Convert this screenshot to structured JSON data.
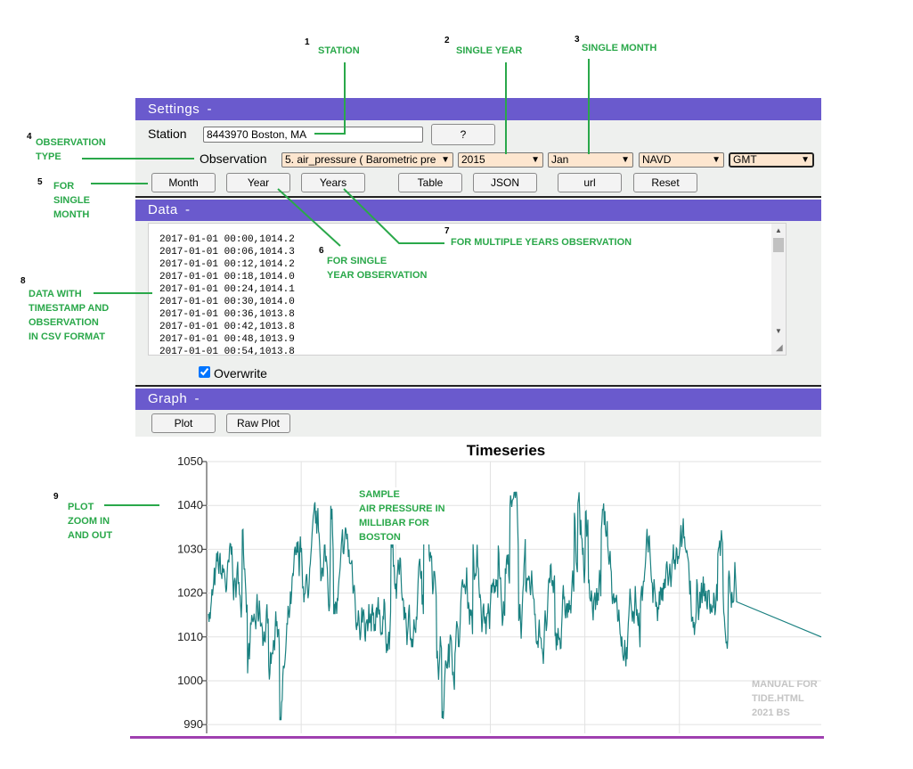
{
  "settings": {
    "header": "Settings",
    "toggle": "-",
    "station_label": "Station",
    "station_value": "8443970 Boston, MA",
    "help_button": "?",
    "observation_label": "Observation",
    "observation_select": "5. air_pressure ( Barometric pre",
    "year_select": "2015",
    "month_select": "Jan",
    "datum_select": "NAVD",
    "tz_select": "GMT",
    "buttons": [
      "Month",
      "Year",
      "Years",
      "Table",
      "JSON",
      "url",
      "Reset"
    ]
  },
  "data_section": {
    "header": "Data",
    "toggle": "-",
    "rows": [
      "2017-01-01 00:00,1014.2",
      "2017-01-01 00:06,1014.3",
      "2017-01-01 00:12,1014.2",
      "2017-01-01 00:18,1014.0",
      "2017-01-01 00:24,1014.1",
      "2017-01-01 00:30,1014.0",
      "2017-01-01 00:36,1013.8",
      "2017-01-01 00:42,1013.8",
      "2017-01-01 00:48,1013.9",
      "2017-01-01 00:54,1013.8"
    ],
    "overwrite_label": "Overwrite",
    "overwrite_checked": true
  },
  "graph": {
    "header": "Graph",
    "toggle": "-",
    "plot_button": "Plot",
    "raw_plot_button": "Raw Plot"
  },
  "chart_data": {
    "type": "line",
    "title": "Timeseries",
    "xlabel": "",
    "ylabel": "",
    "ylim": [
      988,
      1050
    ],
    "yticks": [
      990,
      1000,
      1010,
      1020,
      1030,
      1040,
      1050
    ],
    "grid": true,
    "line_color": "#1a8080"
  },
  "annotations": {
    "a1": {
      "num": "1",
      "text": "STATION"
    },
    "a2": {
      "num": "2",
      "text": "SINGLE YEAR"
    },
    "a3": {
      "num": "3",
      "text": "SINGLE MONTH"
    },
    "a4": {
      "num": "4",
      "line1": "OBSERVATION",
      "line2": "TYPE"
    },
    "a5": {
      "num": "5",
      "line1": "FOR",
      "line2": "SINGLE",
      "line3": "MONTH"
    },
    "a6": {
      "num": "6",
      "line1": "FOR SINGLE",
      "line2": "YEAR OBSERVATION"
    },
    "a7": {
      "num": "7",
      "text": "FOR MULTIPLE YEARS OBSERVATION"
    },
    "a8": {
      "num": "8",
      "line1": "DATA WITH",
      "line2": "TIMESTAMP AND",
      "line3": "OBSERVATION",
      "line4": "IN CSV FORMAT"
    },
    "a9": {
      "num": "9",
      "line1": "PLOT",
      "line2": "ZOOM IN",
      "line3": "AND OUT"
    },
    "sample": {
      "line1": "SAMPLE",
      "line2": "AIR PRESSURE IN",
      "line3": "MILLIBAR FOR",
      "line4": "BOSTON"
    }
  },
  "footer": {
    "line1": "MANUAL FOR",
    "line2": "TIDE.HTML",
    "line3": "2021 BS"
  },
  "colors": {
    "header": "#6a5acd",
    "annotation": "#2aa84a",
    "panel": "#eef0ee",
    "footer_rule": "#a040b0"
  }
}
